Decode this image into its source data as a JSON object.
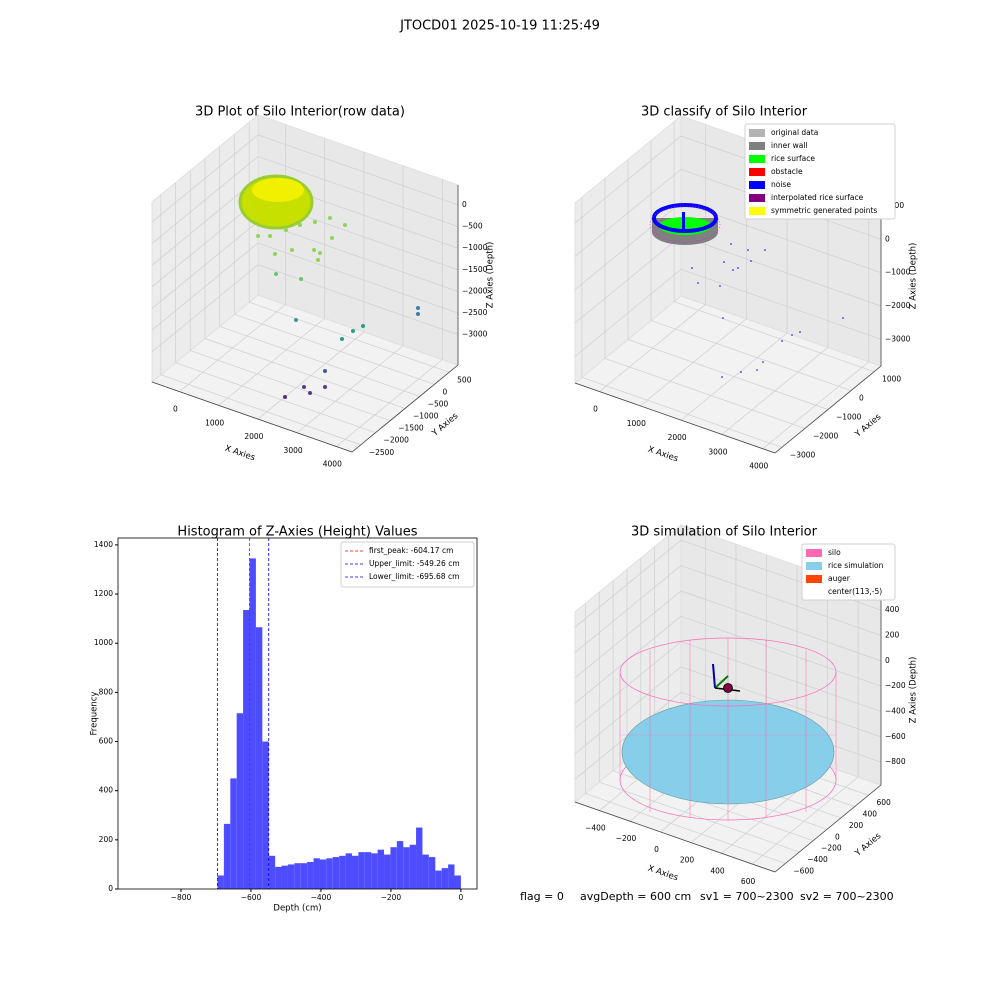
{
  "figure": {
    "title": "JTOCD01 2025-10-19 11:25:49",
    "footer": [
      "flag = 0",
      "avgDepth = 600 cm",
      "sv1 = 700~2300",
      "sv2 = 700~2300"
    ]
  },
  "chart_data": [
    {
      "type": "scatter3d",
      "title": "3D Plot of Silo Interior(row data)",
      "xlabel": "X Axies",
      "ylabel": "Y Axies",
      "zlabel": "Z Axies (Depth)",
      "xlim": [
        -700,
        4400
      ],
      "ylim": [
        -2800,
        800
      ],
      "zlim": [
        -3700,
        460
      ],
      "xticks": [
        0,
        1000,
        2000,
        3000,
        4000
      ],
      "yticks": [
        {
          "value": -2500,
          "label": "−2500"
        },
        {
          "value": -2000,
          "label": "−2000"
        },
        {
          "value": -1500,
          "label": "−1500"
        },
        {
          "value": -1000,
          "label": "−1000"
        },
        {
          "value": -500,
          "label": "−500"
        },
        0,
        500
      ],
      "zticks": [
        {
          "value": -3000,
          "label": "−3000"
        },
        {
          "value": -2500,
          "label": "−2500"
        },
        {
          "value": -2000,
          "label": "−2000"
        },
        {
          "value": -1500,
          "label": "−1500"
        },
        {
          "value": -1000,
          "label": "−1000"
        },
        {
          "value": -500,
          "label": "−500"
        },
        0
      ]
    },
    {
      "type": "scatter3d",
      "title": "3D classify of Silo Interior",
      "xlabel": "X Axies",
      "ylabel": "Y Axies",
      "zlabel": "Z Axies (Depth)",
      "xlim": [
        -600,
        4300
      ],
      "ylim": [
        -3300,
        1300
      ],
      "zlim": [
        -3800,
        1600
      ],
      "xticks": [
        0,
        1000,
        2000,
        3000,
        4000
      ],
      "yticks": [
        {
          "value": -3000,
          "label": "−3000"
        },
        {
          "value": -2000,
          "label": "−2000"
        },
        {
          "value": -1000,
          "label": "−1000"
        },
        0,
        1000
      ],
      "zticks": [
        {
          "value": -3000,
          "label": "−3000"
        },
        {
          "value": -2000,
          "label": "−2000"
        },
        {
          "value": -1000,
          "label": "−1000"
        },
        0,
        1000
      ],
      "legend": [
        {
          "name": "original data",
          "color": "#b3b3b3"
        },
        {
          "name": "inner wall",
          "color": "#808080"
        },
        {
          "name": "rice surface",
          "color": "#00ff00"
        },
        {
          "name": "obstacle",
          "color": "#ff0000"
        },
        {
          "name": "noise",
          "color": "#0000ff"
        },
        {
          "name": "interpolated rice surface",
          "color": "#800080"
        },
        {
          "name": "symmetric generated points",
          "color": "#ffff00"
        }
      ]
    },
    {
      "type": "histogram",
      "title": "Histogram of Z-Axies (Height) Values",
      "xlabel": "Depth (cm)",
      "ylabel": "Frequency",
      "color": "#4d4dff",
      "bins": [
        -695.7,
        -677.4,
        -659.1,
        -640.8,
        -622.5,
        -604.2,
        -585.9,
        -567.5,
        -549.2,
        -530.9,
        -512.6,
        -494.3,
        -476.0,
        -457.7,
        -439.4,
        -421.1,
        -402.8,
        -384.5,
        -366.2,
        -347.9,
        -329.5,
        -311.2,
        -292.9,
        -274.6,
        -256.3,
        -238.0,
        -219.7,
        -201.4,
        -183.1,
        -164.8,
        -146.5,
        -128.2,
        -109.9,
        -91.6,
        -73.2,
        -54.9,
        -36.6,
        -18.3,
        0
      ],
      "values": [
        55,
        265,
        450,
        715,
        1135,
        1345,
        1065,
        600,
        135,
        90,
        95,
        100,
        105,
        105,
        110,
        125,
        120,
        125,
        130,
        135,
        145,
        135,
        150,
        150,
        145,
        160,
        140,
        170,
        195,
        170,
        180,
        250,
        140,
        130,
        75,
        85,
        100,
        55
      ],
      "xlim": [
        -980,
        46
      ],
      "ylim": [
        0,
        1428
      ],
      "xticks": [
        {
          "value": -800,
          "label": "−800"
        },
        {
          "value": -600,
          "label": "−600"
        },
        {
          "value": -400,
          "label": "−400"
        },
        {
          "value": -200,
          "label": "−200"
        },
        0
      ],
      "yticks": [
        0,
        200,
        400,
        600,
        800,
        1000,
        1200,
        1400
      ],
      "lines": [
        {
          "name": "first_peak: -604.17 cm",
          "value": -604.17,
          "color": "#ff0000"
        },
        {
          "name": "Upper_limit: -549.26 cm",
          "value": -549.26,
          "color": "#0000ff"
        },
        {
          "name": "Lower_limit: -695.68 cm",
          "value": -695.68,
          "color": "#0000ff"
        }
      ],
      "legend_loc": "upper right"
    },
    {
      "type": "scatter3d",
      "title": "3D simulation of Silo Interior",
      "xlabel": "X Axies",
      "ylabel": "Y Axies",
      "zlabel": "Z Axies (Depth)",
      "xlim": [
        -560,
        750
      ],
      "ylim": [
        -750,
        780
      ],
      "zlim": [
        -980,
        520
      ],
      "xticks": [
        {
          "value": -400,
          "label": "−400"
        },
        {
          "value": -200,
          "label": "−200"
        },
        0,
        200,
        400,
        600
      ],
      "yticks": [
        {
          "value": -600,
          "label": "−600"
        },
        {
          "value": -400,
          "label": "−400"
        },
        {
          "value": -200,
          "label": "−200"
        },
        0,
        200,
        400,
        600
      ],
      "zticks": [
        {
          "value": -800,
          "label": "−800"
        },
        {
          "value": -600,
          "label": "−600"
        },
        {
          "value": -400,
          "label": "−400"
        },
        {
          "value": -200,
          "label": "−200"
        },
        0,
        200,
        400
      ],
      "legend": [
        {
          "name": "silo",
          "color": "#ff69b4"
        },
        {
          "name": "rice simulation",
          "color": "#87ceeb"
        },
        {
          "name": "auger",
          "color": "#ff4500"
        },
        {
          "name": "center(113,-5)",
          "color": "#ffffff"
        }
      ]
    }
  ]
}
